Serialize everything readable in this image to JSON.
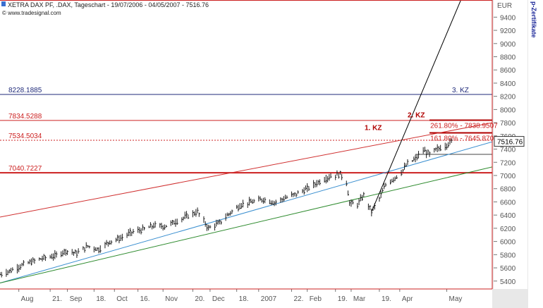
{
  "header": {
    "title": "XETRA DAX PF, .DAX, Tageschart - 19/07/2006 - 04/05/2007 - 7516.76",
    "copyright": "© www.tradesignal.com"
  },
  "side_label": "p-Zertifikate",
  "colors": {
    "price": "#1a1a1a",
    "navy": "#1f2a7a",
    "red": "#cc2020",
    "darkred": "#b00000",
    "blue_trend": "#3a8fd0",
    "green_trend": "#2e8b2e",
    "red_trend": "#d03030",
    "black_trend": "#000000",
    "gray_line": "#444444"
  },
  "chart_data": {
    "type": "line",
    "title": "XETRA DAX PF, .DAX, Tageschart - 19/07/2006 - 04/05/2007 - 7516.76",
    "ylabel": "EUR",
    "ylim": [
      5280,
      9660
    ],
    "x_range": [
      "2006-07-20",
      "2007-05-30"
    ],
    "y_ticks": [
      5400,
      5600,
      5800,
      6000,
      6200,
      6400,
      6600,
      6800,
      7000,
      7200,
      7400,
      7600,
      7800,
      8000,
      8200,
      8400,
      8600,
      8800,
      9000,
      9200,
      9400
    ],
    "x_tick_labels": [
      {
        "date": "2006-08-01",
        "label": "Aug"
      },
      {
        "date": "2006-08-21",
        "label": "21."
      },
      {
        "date": "2006-09-01",
        "label": "Sep"
      },
      {
        "date": "2006-09-18",
        "label": "18."
      },
      {
        "date": "2006-10-01",
        "label": "Oct"
      },
      {
        "date": "2006-10-16",
        "label": "16."
      },
      {
        "date": "2006-11-01",
        "label": "Nov"
      },
      {
        "date": "2006-11-20",
        "label": "20."
      },
      {
        "date": "2006-12-01",
        "label": "Dec"
      },
      {
        "date": "2006-12-18",
        "label": "18."
      },
      {
        "date": "2007-01-01",
        "label": "2007"
      },
      {
        "date": "2007-01-22",
        "label": "22."
      },
      {
        "date": "2007-02-01",
        "label": "Feb"
      },
      {
        "date": "2007-02-19",
        "label": "19."
      },
      {
        "date": "2007-03-01",
        "label": "Mar"
      },
      {
        "date": "2007-03-19",
        "label": "19."
      },
      {
        "date": "2007-04-01",
        "label": "Apr"
      },
      {
        "date": "2007-05-01",
        "label": "May"
      }
    ],
    "series": [
      {
        "values": [
          {
            "x": "2006-07-20",
            "y": 5500
          },
          {
            "x": "2006-07-27",
            "y": 5560
          },
          {
            "x": "2006-08-03",
            "y": 5640
          },
          {
            "x": "2006-08-10",
            "y": 5700
          },
          {
            "x": "2006-08-17",
            "y": 5750
          },
          {
            "x": "2006-08-24",
            "y": 5780
          },
          {
            "x": "2006-08-31",
            "y": 5860
          },
          {
            "x": "2006-09-07",
            "y": 5820
          },
          {
            "x": "2006-09-14",
            "y": 5930
          },
          {
            "x": "2006-09-21",
            "y": 5880
          },
          {
            "x": "2006-09-28",
            "y": 6000
          },
          {
            "x": "2006-10-05",
            "y": 6050
          },
          {
            "x": "2006-10-12",
            "y": 6140
          },
          {
            "x": "2006-10-19",
            "y": 6180
          },
          {
            "x": "2006-10-26",
            "y": 6240
          },
          {
            "x": "2006-11-02",
            "y": 6230
          },
          {
            "x": "2006-11-09",
            "y": 6300
          },
          {
            "x": "2006-11-16",
            "y": 6380
          },
          {
            "x": "2006-11-23",
            "y": 6450
          },
          {
            "x": "2006-11-30",
            "y": 6200
          },
          {
            "x": "2006-12-07",
            "y": 6280
          },
          {
            "x": "2006-12-14",
            "y": 6440
          },
          {
            "x": "2006-12-21",
            "y": 6560
          },
          {
            "x": "2006-12-28",
            "y": 6600
          },
          {
            "x": "2007-01-04",
            "y": 6640
          },
          {
            "x": "2007-01-11",
            "y": 6590
          },
          {
            "x": "2007-01-18",
            "y": 6660
          },
          {
            "x": "2007-01-25",
            "y": 6720
          },
          {
            "x": "2007-02-01",
            "y": 6800
          },
          {
            "x": "2007-02-08",
            "y": 6900
          },
          {
            "x": "2007-02-15",
            "y": 6980
          },
          {
            "x": "2007-02-22",
            "y": 7020
          },
          {
            "x": "2007-02-26",
            "y": 6900
          },
          {
            "x": "2007-02-28",
            "y": 6580
          },
          {
            "x": "2007-03-05",
            "y": 6560
          },
          {
            "x": "2007-03-09",
            "y": 6700
          },
          {
            "x": "2007-03-14",
            "y": 6450
          },
          {
            "x": "2007-03-19",
            "y": 6650
          },
          {
            "x": "2007-03-23",
            "y": 6860
          },
          {
            "x": "2007-03-28",
            "y": 6950
          },
          {
            "x": "2007-04-02",
            "y": 7050
          },
          {
            "x": "2007-04-06",
            "y": 7180
          },
          {
            "x": "2007-04-11",
            "y": 7250
          },
          {
            "x": "2007-04-16",
            "y": 7380
          },
          {
            "x": "2007-04-20",
            "y": 7320
          },
          {
            "x": "2007-04-25",
            "y": 7400
          },
          {
            "x": "2007-04-30",
            "y": 7450
          },
          {
            "x": "2007-05-04",
            "y": 7516.76
          }
        ]
      }
    ],
    "horizontal_levels": [
      {
        "value": 8228.1885,
        "label": "8228.1885",
        "note": "3. KZ",
        "color": "#1f2a7a",
        "style": "solid"
      },
      {
        "value": 7834.5288,
        "label": "7834.5288",
        "color": "#cc2020",
        "style": "solid"
      },
      {
        "value": 7534.5034,
        "label": "7534.5034",
        "color": "#cc2020",
        "style": "dotted"
      },
      {
        "value": 7040.7227,
        "label": "7040.7227",
        "color": "#cc2020",
        "style": "solid",
        "thick": true
      }
    ],
    "fibonacci_levels": [
      {
        "value": 7838.9507,
        "label": "261.80% - 7838.9507",
        "note": "2. KZ"
      },
      {
        "value": 7645.8701,
        "label": "161.80% - 7645.8701",
        "note": "1. KZ"
      }
    ],
    "support_level": {
      "value": 7320
    },
    "current_price": {
      "value": 7516.76,
      "label": "7516.76"
    },
    "trendlines": [
      {
        "name": "red-trend",
        "from": {
          "x": "2006-07-20",
          "y": 6370
        },
        "to": {
          "x": "2007-05-30",
          "y": 7800
        }
      },
      {
        "name": "blue-trend",
        "from": {
          "x": "2006-07-20",
          "y": 5370
        },
        "to": {
          "x": "2007-05-30",
          "y": 7510
        }
      },
      {
        "name": "green-trend",
        "from": {
          "x": "2006-07-20",
          "y": 5370
        },
        "to": {
          "x": "2007-05-30",
          "y": 7130
        }
      },
      {
        "name": "black-trend",
        "from": {
          "x": "2007-03-14",
          "y": 6450
        },
        "to": {
          "x": "2007-05-10",
          "y": 9660
        }
      }
    ]
  }
}
